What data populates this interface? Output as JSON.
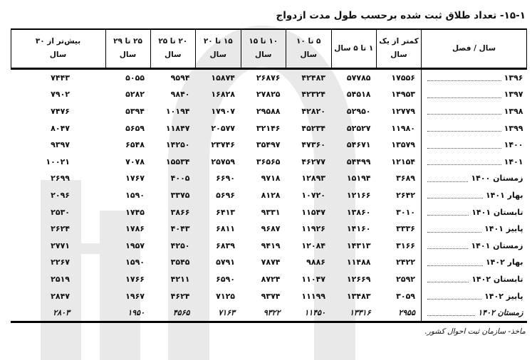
{
  "title": "۱۵-۱- تعداد طلاق ثبت شده برحسب طول مدت ازدواج",
  "source_note": "ماخذ- سازمان ثبت احوال کشور.",
  "colors": {
    "watermark_gray": "#e9e9e9",
    "border_black": "#000000",
    "text_black": "#111111"
  },
  "table": {
    "corner_header": "سال / فصل",
    "columns": [
      {
        "line1": "کمتر از یک",
        "line2": "سال"
      },
      {
        "line1": "۱ تا ۵ سال",
        "line2": ""
      },
      {
        "line1": "۵ تا ۱۰",
        "line2": "سال"
      },
      {
        "line1": "۱۰ تا ۱۵",
        "line2": "سال"
      },
      {
        "line1": "۱۵ تا ۲۰",
        "line2": "سال"
      },
      {
        "line1": "۲۰ تا ۲۵",
        "line2": "سال"
      },
      {
        "line1": "۲۵ تا ۲۹",
        "line2": "سال"
      },
      {
        "line1": "بیش‌تر از ۳۰",
        "line2": "سال"
      }
    ],
    "rows": [
      {
        "label": "۱۳۹۶",
        "values": [
          "۱۷۵۵۶",
          "۵۷۷۸۵",
          "۴۲۴۸۳",
          "۲۶۸۷۶",
          "۱۵۸۷۴",
          "۹۵۹۴",
          "۵۰۵۵",
          "۷۴۴۳"
        ],
        "emphasis": false
      },
      {
        "label": "۱۳۹۷",
        "values": [
          "۱۴۹۵۳",
          "۵۴۵۱۸",
          "۴۲۳۲۴",
          "۲۷۸۲۵",
          "۱۶۸۲۸",
          "۹۸۴۰",
          "۵۲۸۲",
          "۷۹۰۲"
        ],
        "emphasis": false
      },
      {
        "label": "۱۳۹۸",
        "values": [
          "۱۲۷۷۹",
          "۵۲۹۵۰",
          "۴۲۸۲۰",
          "۲۹۵۸۸",
          "۱۷۹۰۷",
          "۱۰۱۹۴",
          "۵۳۹۴",
          "۷۴۷۶"
        ],
        "emphasis": false
      },
      {
        "label": "۱۳۹۹",
        "values": [
          "۱۱۹۸۰",
          "۵۲۵۲۷",
          "۴۵۲۳۴",
          "۳۲۱۴۶",
          "۲۰۵۷۷",
          "۱۱۸۴۷",
          "۵۶۵۹",
          "۸۰۴۷"
        ],
        "emphasis": false
      },
      {
        "label": "۱۴۰۰",
        "values": [
          "۱۳۵۷۹",
          "۵۴۶۷۱",
          "۴۷۳۶۰",
          "۳۵۴۹۷",
          "۲۳۷۴۶",
          "۱۴۲۵۰",
          "۶۵۴۸",
          "۹۳۹۷"
        ],
        "emphasis": false
      },
      {
        "label": "۱۴۰۱",
        "values": [
          "۱۲۱۵۴",
          "۵۴۴۹۹",
          "۴۶۲۷۷",
          "۳۶۵۶۵",
          "۲۵۷۵۹",
          "۱۵۵۳۴",
          "۷۰۷۸",
          "۱۰۰۲۱"
        ],
        "emphasis": false
      },
      {
        "label": "زمستان ۱۴۰۰",
        "values": [
          "۳۶۸۹",
          "۱۵۱۹۴",
          "۱۲۸۹۳",
          "۹۷۱۸",
          "۶۶۹۰",
          "۴۰۰۵",
          "۱۷۶۷",
          "۲۶۹۹"
        ],
        "emphasis": false
      },
      {
        "label": "بهار ۱۴۰۱",
        "values": [
          "۲۶۴۲",
          "۱۲۱۶۶",
          "۱۰۷۲۰",
          "۸۱۲۸",
          "۵۶۹۶",
          "۳۳۷۵",
          "۱۵۹۰",
          "۲۰۹۶"
        ],
        "emphasis": false
      },
      {
        "label": "تابستان ۱۴۰۱",
        "values": [
          "۳۰۱۰",
          "۱۳۸۶۰",
          "۱۱۵۴۷",
          "۹۳۳۱",
          "۶۴۱۳",
          "۳۸۶۶",
          "۱۷۴۵",
          "۲۵۳۰"
        ],
        "emphasis": false
      },
      {
        "label": "پاییز ۱۴۰۱",
        "values": [
          "۳۳۳۶",
          "۱۴۱۶۰",
          "۱۱۹۲۶",
          "۹۶۸۷",
          "۶۸۱۱",
          "۴۰۴۳",
          "۱۷۸۶",
          "۲۶۲۴"
        ],
        "emphasis": false
      },
      {
        "label": "زمستان ۱۴۰۱",
        "values": [
          "۳۱۶۶",
          "۱۴۳۱۳",
          "۱۲۰۸۴",
          "۹۴۱۹",
          "۶۸۳۹",
          "۴۲۵۰",
          "۱۹۵۷",
          "۲۷۷۱"
        ],
        "emphasis": false
      },
      {
        "label": "بهار ۱۴۰۲",
        "values": [
          "۲۴۲۲",
          "۱۱۴۸۸",
          "۹۸۸۶",
          "۷۸۷۴",
          "۵۷۹۱",
          "۳۵۴۵",
          "۱۵۹۰",
          "۲۲۶۷"
        ],
        "emphasis": false
      },
      {
        "label": "تابستان ۱۴۰۲",
        "values": [
          "۲۵۹۲",
          "۱۲۶۶۹",
          "۱۱۰۴۷",
          "۸۷۲۴",
          "۶۵۹۰",
          "۴۲۱۱",
          "۱۷۶۶",
          "۲۵۱۹"
        ],
        "emphasis": false
      },
      {
        "label": "پاییز ۱۴۰۲",
        "values": [
          "۳۰۵۹",
          "۱۳۴۸۳",
          "۱۱۱۹۹",
          "۹۳۷۴",
          "۷۱۲۵",
          "۴۶۲۴",
          "۱۹۶۷",
          "۲۸۴۷"
        ],
        "emphasis": false
      },
      {
        "label": "زمستان ۱۴۰۲",
        "values": [
          "۲۹۵۵",
          "۱۳۳۱۶",
          "۱۱۴۵۰",
          "۹۳۲۲",
          "۷۱۶۳",
          "۴۵۶۵",
          "۱۹۵۰",
          "۲۸۰۳"
        ],
        "emphasis": true
      }
    ]
  }
}
